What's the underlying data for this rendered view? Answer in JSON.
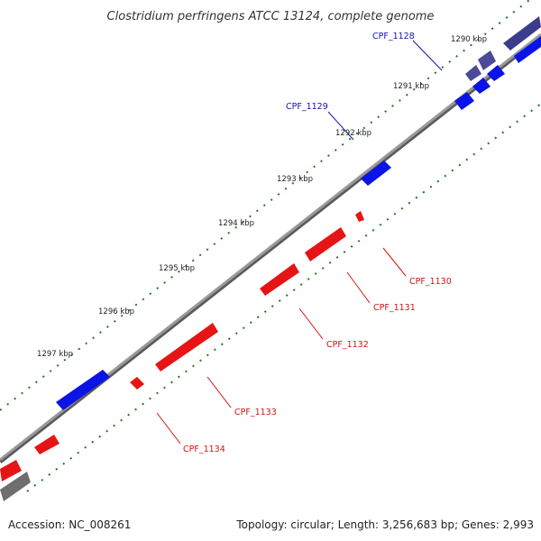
{
  "title": "Clostridium perfringens ATCC 13124, complete genome",
  "footer": {
    "accession": "Accession: NC_008261",
    "topology": "Topology: circular; Length: 3,256,683 bp; Genes: 2,993"
  },
  "colors": {
    "forward": "#0a14e6",
    "reverse": "#e61414",
    "other": "#3c3c8c",
    "backbone": "#8c8c8c",
    "tick": "#1e781e",
    "label_blue": "#1414b4",
    "label_red": "#d21414"
  },
  "ticks": [
    "1290 kbp",
    "1291 kbp",
    "1292 kbp",
    "1293 kbp",
    "1294 kbp",
    "1295 kbp",
    "1296 kbp",
    "1297 kbp"
  ],
  "gene_labels": [
    "CPF_1128",
    "CPF_1129",
    "CPF_1130",
    "CPF_1131",
    "CPF_1132",
    "CPF_1133",
    "CPF_1134"
  ]
}
